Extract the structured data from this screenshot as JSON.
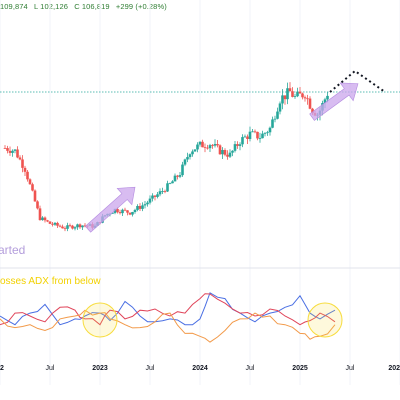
{
  "ohlc": {
    "high": "109,874",
    "low": "L 102,126",
    "close": "C 106,819",
    "change": "+299 (+0.28%)"
  },
  "colors": {
    "up": "#26a69a",
    "down": "#ef5350",
    "plus_di": "#4a6fe3",
    "minus_di": "#e0455a",
    "adx": "#f29a4a",
    "arrow": "#cba6ec",
    "circle": "#f7dc3c",
    "ohlc_text": "#2e7d32",
    "projection": "#131722"
  },
  "annotations": {
    "started": "arted",
    "adx_note": "osses ADX from below"
  },
  "chart_data": [
    {
      "type": "candlestick",
      "title": "",
      "x_tick_labels": [
        "2",
        "Jul",
        "2023",
        "Jul",
        "2024",
        "Jul",
        "2025",
        "Jul",
        "202"
      ],
      "x_ticks_t": [
        0,
        0.5,
        1,
        1.5,
        2,
        2.5,
        3,
        3.5,
        4
      ],
      "price_t": [
        0.05,
        0.15,
        0.25,
        0.4,
        0.5,
        0.65,
        0.8,
        0.95,
        1.05,
        1.15,
        1.3,
        1.45,
        1.6,
        1.7,
        1.8,
        1.9,
        2.0,
        2.1,
        2.2,
        2.3,
        2.4,
        2.5,
        2.6,
        2.7,
        2.8,
        2.9,
        2.95,
        3.05,
        3.12,
        3.18,
        3.22,
        3.28
      ],
      "price_level": [
        0.6,
        0.58,
        0.45,
        0.1,
        0.06,
        0.03,
        0.05,
        0.04,
        0.12,
        0.16,
        0.14,
        0.2,
        0.28,
        0.34,
        0.42,
        0.58,
        0.62,
        0.63,
        0.58,
        0.55,
        0.65,
        0.7,
        0.68,
        0.74,
        0.95,
        1.0,
        0.96,
        0.99,
        0.88,
        0.84,
        0.9,
        1.0
      ],
      "current_price_line": 1.0,
      "projection_path": [
        [
          3.3,
          1.0
        ],
        [
          3.55,
          1.15
        ],
        [
          3.85,
          1.0
        ]
      ],
      "arrows": [
        {
          "from": [
            0.88,
            0.02
          ],
          "to": [
            1.35,
            0.32
          ]
        },
        {
          "from": [
            3.12,
            0.82
          ],
          "to": [
            3.58,
            1.06
          ]
        }
      ]
    },
    {
      "type": "line",
      "title": "",
      "ylim": [
        0,
        1
      ],
      "series": [
        {
          "t": [
            0,
            0.15,
            0.3,
            0.45,
            0.6,
            0.75,
            0.85,
            1.0,
            1.1,
            1.25,
            1.4,
            1.55,
            1.7,
            1.85,
            2.0,
            2.1,
            2.25,
            2.4,
            2.55,
            2.7,
            2.85,
            3.0,
            3.1,
            3.2,
            3.35
          ],
          "values": [
            0.5,
            0.35,
            0.55,
            0.7,
            0.35,
            0.45,
            0.5,
            0.55,
            0.42,
            0.75,
            0.5,
            0.4,
            0.45,
            0.35,
            0.45,
            0.9,
            0.8,
            0.55,
            0.4,
            0.55,
            0.65,
            0.85,
            0.55,
            0.45,
            0.6
          ]
        },
        {
          "t": [
            0,
            0.15,
            0.3,
            0.45,
            0.6,
            0.75,
            0.85,
            1.0,
            1.1,
            1.25,
            1.4,
            1.55,
            1.7,
            1.85,
            2.0,
            2.1,
            2.25,
            2.4,
            2.55,
            2.7,
            2.85,
            3.0,
            3.1,
            3.2,
            3.35
          ],
          "values": [
            0.35,
            0.55,
            0.5,
            0.4,
            0.65,
            0.6,
            0.45,
            0.35,
            0.6,
            0.45,
            0.6,
            0.62,
            0.5,
            0.55,
            0.8,
            0.88,
            0.72,
            0.55,
            0.5,
            0.62,
            0.5,
            0.35,
            0.42,
            0.55,
            0.4
          ]
        },
        {
          "t": [
            0,
            0.15,
            0.3,
            0.45,
            0.6,
            0.75,
            0.85,
            1.0,
            1.1,
            1.25,
            1.4,
            1.55,
            1.7,
            1.85,
            2.0,
            2.1,
            2.25,
            2.4,
            2.55,
            2.7,
            2.85,
            3.0,
            3.1,
            3.2,
            3.35
          ],
          "values": [
            0.45,
            0.3,
            0.35,
            0.25,
            0.45,
            0.5,
            0.6,
            0.55,
            0.45,
            0.35,
            0.3,
            0.4,
            0.55,
            0.2,
            0.15,
            0.05,
            0.25,
            0.45,
            0.55,
            0.5,
            0.35,
            0.2,
            0.1,
            0.15,
            0.35
          ]
        }
      ],
      "highlight_circles_t": [
        1.0,
        3.25
      ]
    }
  ]
}
